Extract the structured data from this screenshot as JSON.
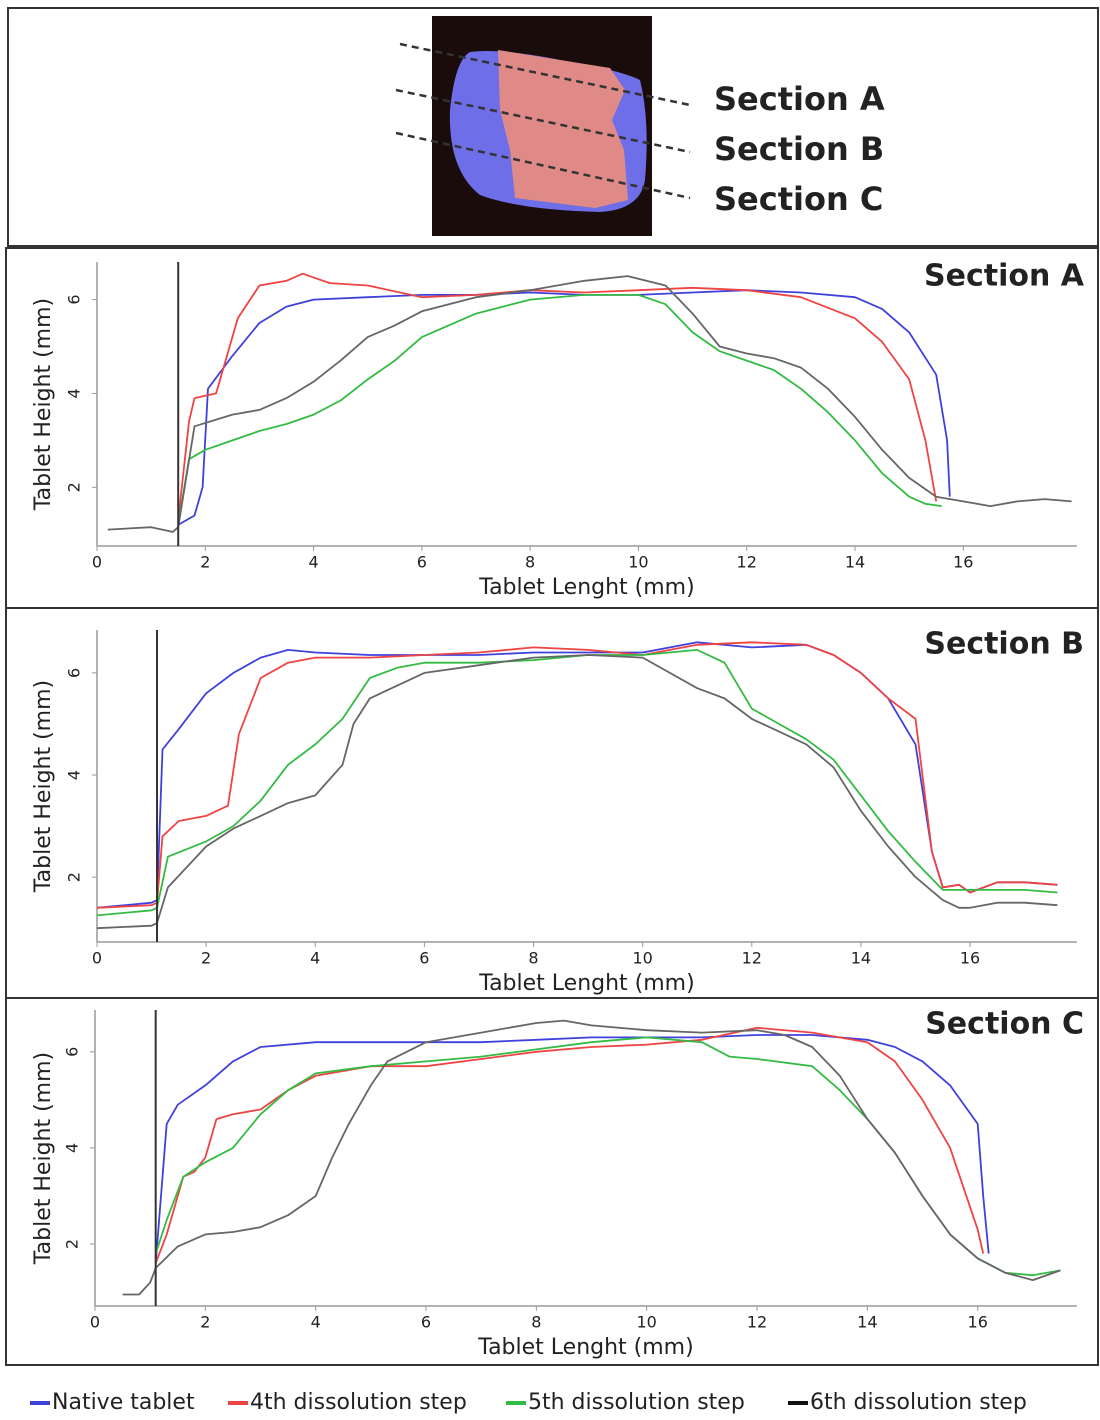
{
  "image_labels": [
    "Section A",
    "Section B",
    "Section C"
  ],
  "chart_data": [
    {
      "type": "line",
      "title": "Section A",
      "x_label": "Tablet Lenght (mm)",
      "y_label": "Tablet Height (mm)",
      "xlim": [
        0,
        18.1
      ],
      "ylim": [
        0.75,
        6.8
      ],
      "xticks": [
        0,
        2,
        4,
        6,
        8,
        10,
        12,
        14,
        16
      ],
      "yticks": [
        2,
        4,
        6
      ],
      "marker_x": 1.5,
      "series": [
        {
          "name": "Native tablet",
          "color": "#4040dd",
          "x": [
            1.5,
            1.8,
            1.95,
            2.05,
            2.5,
            3.0,
            3.5,
            4.0,
            5,
            6,
            7,
            8,
            9,
            10,
            11,
            12,
            13,
            14,
            14.5,
            15,
            15.5,
            15.7,
            15.75
          ],
          "values": [
            1.2,
            1.4,
            2.0,
            4.1,
            4.8,
            5.5,
            5.85,
            6.0,
            6.05,
            6.1,
            6.1,
            6.15,
            6.1,
            6.1,
            6.15,
            6.2,
            6.15,
            6.05,
            5.8,
            5.3,
            4.4,
            3.0,
            1.8
          ]
        },
        {
          "name": "4th dissolution step",
          "color": "#ee4444",
          "x": [
            1.5,
            1.7,
            1.8,
            2.2,
            2.6,
            3.0,
            3.5,
            3.8,
            4.3,
            5,
            6,
            7,
            8,
            9,
            10,
            11,
            12,
            13,
            14,
            14.5,
            15,
            15.3,
            15.5
          ],
          "values": [
            1.3,
            3.4,
            3.9,
            4.0,
            5.6,
            6.3,
            6.4,
            6.55,
            6.35,
            6.3,
            6.05,
            6.1,
            6.2,
            6.15,
            6.2,
            6.25,
            6.2,
            6.05,
            5.6,
            5.1,
            4.3,
            3.0,
            1.7
          ]
        },
        {
          "name": "5th dissolution step",
          "color": "#33bb44",
          "x": [
            1.5,
            1.7,
            2.0,
            2.5,
            3,
            3.5,
            4,
            4.5,
            5,
            5.5,
            6,
            7,
            8,
            9,
            9.5,
            10,
            10.5,
            11,
            11.5,
            12,
            12.5,
            13,
            13.5,
            14,
            14.5,
            15,
            15.3,
            15.6
          ],
          "values": [
            1.2,
            2.6,
            2.8,
            3.0,
            3.2,
            3.35,
            3.55,
            3.85,
            4.3,
            4.7,
            5.2,
            5.7,
            6.0,
            6.1,
            6.1,
            6.1,
            5.9,
            5.3,
            4.9,
            4.7,
            4.5,
            4.1,
            3.6,
            3.0,
            2.3,
            1.8,
            1.65,
            1.6
          ]
        },
        {
          "name": "6th dissolution step",
          "color": "#666666",
          "x": [
            0.2,
            1.0,
            1.4,
            1.5,
            1.8,
            2.5,
            3.0,
            3.5,
            4,
            4.5,
            5,
            5.5,
            6,
            7,
            8,
            9,
            9.8,
            10.5,
            11,
            11.5,
            12,
            12.5,
            13,
            13.5,
            14,
            14.5,
            15,
            15.5,
            16,
            16.5,
            17,
            17.5,
            18
          ],
          "values": [
            1.1,
            1.15,
            1.05,
            1.15,
            3.3,
            3.55,
            3.65,
            3.9,
            4.25,
            4.7,
            5.2,
            5.45,
            5.75,
            6.05,
            6.2,
            6.4,
            6.5,
            6.3,
            5.7,
            5.0,
            4.85,
            4.75,
            4.55,
            4.1,
            3.5,
            2.8,
            2.2,
            1.8,
            1.7,
            1.6,
            1.7,
            1.75,
            1.7
          ]
        }
      ]
    },
    {
      "type": "line",
      "title": "Section B",
      "x_label": "Tablet Lenght (mm)",
      "y_label": "Tablet Height (mm)",
      "xlim": [
        0,
        17.96
      ],
      "ylim": [
        0.73,
        6.84
      ],
      "xticks": [
        0,
        2,
        4,
        6,
        8,
        10,
        12,
        14,
        16
      ],
      "yticks": [
        2,
        4,
        6
      ],
      "marker_x": 1.1,
      "series": [
        {
          "name": "Native tablet",
          "color": "#4040dd",
          "x": [
            0,
            1.0,
            1.1,
            1.2,
            1.5,
            2,
            2.5,
            3,
            3.5,
            4,
            5,
            6,
            7,
            8,
            9,
            10,
            11,
            12,
            13,
            13.5,
            14,
            14.5,
            15,
            15.3,
            15.5,
            15.8,
            16,
            16.5,
            17,
            17.6
          ],
          "values": [
            1.4,
            1.5,
            1.55,
            4.5,
            4.9,
            5.6,
            6.0,
            6.3,
            6.45,
            6.4,
            6.35,
            6.35,
            6.35,
            6.4,
            6.4,
            6.4,
            6.6,
            6.5,
            6.55,
            6.35,
            6.0,
            5.5,
            4.6,
            2.5,
            1.8,
            1.85,
            1.7,
            1.9,
            1.9,
            1.85
          ]
        },
        {
          "name": "4th dissolution step",
          "color": "#ee4444",
          "x": [
            0,
            1.0,
            1.1,
            1.2,
            1.5,
            2,
            2.4,
            2.6,
            3.0,
            3.5,
            4,
            5,
            6,
            7,
            8,
            9,
            10,
            11,
            12,
            13,
            13.5,
            14,
            14.5,
            15,
            15.3,
            15.5,
            15.8,
            16,
            16.5,
            17,
            17.6
          ],
          "values": [
            1.4,
            1.45,
            1.5,
            2.8,
            3.1,
            3.2,
            3.4,
            4.8,
            5.9,
            6.2,
            6.3,
            6.3,
            6.35,
            6.4,
            6.5,
            6.45,
            6.35,
            6.55,
            6.6,
            6.55,
            6.35,
            6.0,
            5.5,
            5.1,
            2.5,
            1.8,
            1.85,
            1.7,
            1.9,
            1.9,
            1.85
          ]
        },
        {
          "name": "5th dissolution step",
          "color": "#33bb44",
          "x": [
            0,
            1.0,
            1.1,
            1.3,
            2,
            2.5,
            3,
            3.5,
            4,
            4.5,
            5,
            5.5,
            6,
            7,
            8,
            9,
            10,
            11,
            11.5,
            12,
            12.5,
            13,
            13.5,
            14,
            14.5,
            15,
            15.5,
            16,
            16.5,
            17,
            17.6
          ],
          "values": [
            1.25,
            1.35,
            1.4,
            2.4,
            2.7,
            3.0,
            3.5,
            4.2,
            4.6,
            5.1,
            5.9,
            6.1,
            6.2,
            6.2,
            6.25,
            6.35,
            6.35,
            6.45,
            6.2,
            5.3,
            5.0,
            4.7,
            4.3,
            3.6,
            2.9,
            2.3,
            1.75,
            1.75,
            1.75,
            1.75,
            1.7
          ]
        },
        {
          "name": "6th dissolution step",
          "color": "#666666",
          "x": [
            0,
            1.0,
            1.1,
            1.3,
            2,
            2.5,
            3,
            3.5,
            4,
            4.5,
            4.7,
            5,
            6,
            7,
            8,
            9,
            10,
            10.5,
            11,
            11.5,
            12,
            12.5,
            13,
            13.5,
            14,
            14.5,
            15,
            15.5,
            15.8,
            16,
            16.5,
            17,
            17.6
          ],
          "values": [
            1.0,
            1.05,
            1.1,
            1.8,
            2.6,
            2.95,
            3.2,
            3.45,
            3.6,
            4.2,
            5.0,
            5.5,
            6.0,
            6.15,
            6.3,
            6.35,
            6.3,
            6.0,
            5.7,
            5.5,
            5.1,
            4.85,
            4.6,
            4.15,
            3.3,
            2.6,
            2.0,
            1.55,
            1.4,
            1.4,
            1.5,
            1.5,
            1.45
          ]
        }
      ]
    },
    {
      "type": "line",
      "title": "Section C",
      "x_label": "Tablet Lenght (mm)",
      "y_label": "Tablet Height (mm)",
      "xlim": [
        0,
        17.8
      ],
      "ylim": [
        0.71,
        6.87
      ],
      "xticks": [
        0,
        2,
        4,
        6,
        8,
        10,
        12,
        14,
        16
      ],
      "yticks": [
        2,
        4,
        6
      ],
      "marker_x": 1.1,
      "series": [
        {
          "name": "Native tablet",
          "color": "#4040dd",
          "x": [
            1.1,
            1.3,
            1.5,
            2,
            2.5,
            3,
            4,
            5,
            6,
            7,
            8,
            9,
            10,
            11,
            12,
            13,
            14,
            14.5,
            15,
            15.5,
            16.0,
            16.1,
            16.2
          ],
          "values": [
            1.6,
            4.5,
            4.9,
            5.3,
            5.8,
            6.1,
            6.2,
            6.2,
            6.2,
            6.2,
            6.25,
            6.3,
            6.3,
            6.3,
            6.35,
            6.35,
            6.25,
            6.1,
            5.8,
            5.3,
            4.5,
            3.0,
            1.8
          ]
        },
        {
          "name": "4th dissolution step",
          "color": "#ee4444",
          "x": [
            1.1,
            1.3,
            1.6,
            1.8,
            2.0,
            2.2,
            2.5,
            3,
            3.5,
            4,
            5,
            6,
            7,
            8,
            9,
            10,
            11,
            12,
            13,
            14,
            14.5,
            15,
            15.5,
            16,
            16.1
          ],
          "values": [
            1.6,
            2.2,
            3.4,
            3.5,
            3.8,
            4.6,
            4.7,
            4.8,
            5.2,
            5.5,
            5.7,
            5.7,
            5.85,
            6.0,
            6.1,
            6.15,
            6.25,
            6.5,
            6.4,
            6.2,
            5.8,
            5.0,
            4.0,
            2.3,
            1.8
          ]
        },
        {
          "name": "5th dissolution step",
          "color": "#33bb44",
          "x": [
            1.1,
            1.3,
            1.6,
            2,
            2.5,
            3,
            3.5,
            4,
            5,
            6,
            7,
            8,
            9,
            10,
            11,
            11.5,
            12,
            13,
            13.5,
            14,
            14.5,
            15,
            15.5,
            16,
            16.5,
            17,
            17.5
          ],
          "values": [
            1.8,
            2.5,
            3.4,
            3.7,
            4.0,
            4.7,
            5.2,
            5.55,
            5.7,
            5.8,
            5.9,
            6.05,
            6.2,
            6.3,
            6.2,
            5.9,
            5.85,
            5.7,
            5.2,
            4.6,
            3.9,
            3.0,
            2.2,
            1.7,
            1.4,
            1.35,
            1.45
          ]
        },
        {
          "name": "6th dissolution step",
          "color": "#666666",
          "x": [
            0.5,
            0.8,
            1.0,
            1.1,
            1.5,
            2,
            2.5,
            3,
            3.5,
            4,
            4.3,
            4.6,
            5.0,
            5.3,
            6,
            7,
            8,
            8.5,
            9,
            10,
            11,
            12,
            12.5,
            13,
            13.5,
            14,
            14.5,
            15,
            15.5,
            16,
            16.5,
            17,
            17.5
          ],
          "values": [
            0.95,
            0.95,
            1.2,
            1.5,
            1.95,
            2.2,
            2.25,
            2.35,
            2.6,
            3.0,
            3.8,
            4.5,
            5.3,
            5.8,
            6.2,
            6.4,
            6.6,
            6.65,
            6.55,
            6.45,
            6.4,
            6.45,
            6.35,
            6.1,
            5.5,
            4.6,
            3.9,
            3.0,
            2.2,
            1.7,
            1.4,
            1.25,
            1.45
          ]
        }
      ]
    }
  ]
}
